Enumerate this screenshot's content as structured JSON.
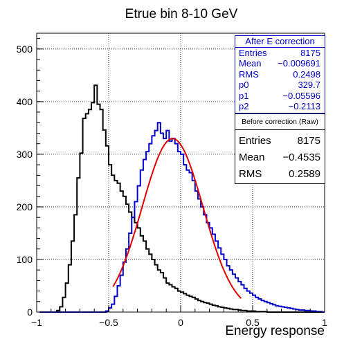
{
  "chart_data": {
    "type": "histogram",
    "title": "Etrue bin 8-10 GeV",
    "xlabel": "Energy response",
    "ylabel": "",
    "xlim": [
      -1,
      1
    ],
    "ylim": [
      0,
      530
    ],
    "x_ticks": [
      "−1",
      "−0.5",
      "0",
      "0.5",
      "1"
    ],
    "y_ticks": [
      "0",
      "100",
      "200",
      "300",
      "400",
      "500"
    ],
    "grid": true,
    "bin_width": 0.02,
    "bin_starts": [
      -0.98,
      -0.96,
      -0.94,
      -0.92,
      -0.9,
      -0.88,
      -0.86,
      -0.84,
      -0.82,
      -0.8,
      -0.78,
      -0.76,
      -0.74,
      -0.72,
      -0.7,
      -0.68,
      -0.66,
      -0.64,
      -0.62,
      -0.6,
      -0.58,
      -0.56,
      -0.54,
      -0.52,
      -0.5,
      -0.48,
      -0.46,
      -0.44,
      -0.42,
      -0.4,
      -0.38,
      -0.36,
      -0.34,
      -0.32,
      -0.3,
      -0.28,
      -0.26,
      -0.24,
      -0.22,
      -0.2,
      -0.18,
      -0.16,
      -0.14,
      -0.12,
      -0.1,
      -0.08,
      -0.06,
      -0.04,
      -0.02,
      0,
      0.02,
      0.04,
      0.06,
      0.08,
      0.1,
      0.12,
      0.14,
      0.16,
      0.18,
      0.2,
      0.22,
      0.24,
      0.26,
      0.28,
      0.3,
      0.32,
      0.34,
      0.36,
      0.38,
      0.4,
      0.42,
      0.44,
      0.46,
      0.48,
      0.5,
      0.52,
      0.54,
      0.56,
      0.58,
      0.6,
      0.62,
      0.64,
      0.66,
      0.68,
      0.7,
      0.72,
      0.74,
      0.76,
      0.78,
      0.8,
      0.82,
      0.84,
      0.86,
      0.88,
      0.9,
      0.92,
      0.94,
      0.96,
      0.98
    ],
    "series": [
      {
        "name": "Before correction (Raw)",
        "color": "#000000",
        "counts": [
          0,
          0,
          0,
          0,
          0,
          0,
          3,
          10,
          28,
          55,
          90,
          135,
          185,
          255,
          302,
          368,
          377,
          385,
          398,
          431,
          395,
          385,
          346,
          316,
          280,
          260,
          250,
          245,
          230,
          220,
          205,
          190,
          180,
          170,
          160,
          145,
          135,
          120,
          110,
          100,
          90,
          80,
          75,
          65,
          55,
          52,
          48,
          45,
          40,
          38,
          35,
          32,
          30,
          28,
          25,
          22,
          20,
          18,
          17,
          15,
          13,
          12,
          10,
          9,
          8,
          7,
          6,
          5,
          5,
          4,
          3,
          3,
          2,
          2,
          2,
          1,
          1,
          1,
          1,
          0,
          0,
          0,
          0,
          0,
          0,
          0,
          0,
          0,
          0,
          0,
          0,
          0,
          0,
          0,
          0,
          0,
          0,
          0,
          0
        ]
      },
      {
        "name": "After E correction",
        "color": "#0000cc",
        "counts": [
          0,
          0,
          0,
          0,
          0,
          0,
          0,
          0,
          0,
          0,
          0,
          0,
          0,
          0,
          0,
          0,
          0,
          0,
          0,
          0,
          0,
          0,
          0,
          2,
          8,
          15,
          30,
          50,
          70,
          95,
          120,
          150,
          180,
          210,
          240,
          270,
          290,
          305,
          320,
          335,
          345,
          360,
          340,
          330,
          345,
          325,
          330,
          320,
          305,
          300,
          280,
          270,
          265,
          250,
          230,
          215,
          200,
          185,
          170,
          160,
          148,
          135,
          122,
          110,
          100,
          88,
          80,
          72,
          65,
          58,
          52,
          45,
          40,
          36,
          32,
          28,
          25,
          22,
          20,
          18,
          16,
          14,
          12,
          11,
          10,
          9,
          8,
          7,
          6,
          5,
          4,
          4,
          3,
          3,
          2,
          2,
          1,
          1,
          0
        ]
      }
    ],
    "fit": {
      "name": "gaus fit",
      "color": "#e00000",
      "p0": 329.7,
      "p1": -0.05596,
      "p2": -0.2113,
      "x_range": [
        -0.47,
        0.42
      ]
    },
    "stats_after": {
      "title": "After E correction",
      "rows": [
        {
          "label": "Entries",
          "value": "8175"
        },
        {
          "label": "Mean",
          "value": "−0.009691"
        },
        {
          "label": "RMS",
          "value": "0.2498"
        },
        {
          "label": "p0",
          "value": "329.7"
        },
        {
          "label": "p1",
          "value": "−0.05596"
        },
        {
          "label": "p2",
          "value": "−0.2113"
        }
      ]
    },
    "stats_raw": {
      "title": "Before correction (Raw)",
      "rows": [
        {
          "label": "Entries",
          "value": "8175"
        },
        {
          "label": "Mean",
          "value": "−0.4535"
        },
        {
          "label": "RMS",
          "value": "0.2589"
        }
      ]
    }
  }
}
